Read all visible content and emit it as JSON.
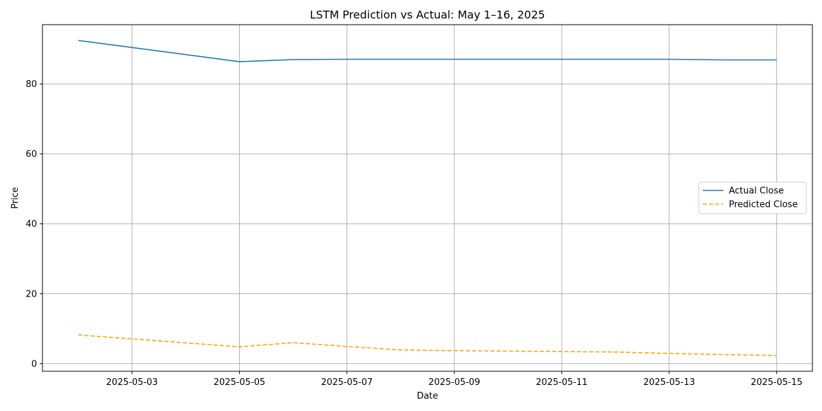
{
  "chart_data": {
    "type": "line",
    "title": "LSTM Prediction vs Actual: May 1–16, 2025",
    "xlabel": "Date",
    "ylabel": "Price",
    "x": [
      "2025-05-02",
      "2025-05-05",
      "2025-05-06",
      "2025-05-07",
      "2025-05-08",
      "2025-05-09",
      "2025-05-12",
      "2025-05-13",
      "2025-05-14",
      "2025-05-15"
    ],
    "series": [
      {
        "name": "Actual Close",
        "color": "#1f77b4",
        "style": "solid",
        "values": [
          92.5,
          86.4,
          87.0,
          87.1,
          87.1,
          87.1,
          87.1,
          87.1,
          86.9,
          86.9
        ]
      },
      {
        "name": "Predicted Close",
        "color": "#ffa500",
        "style": "dashed",
        "values": [
          8.2,
          4.8,
          6.0,
          4.9,
          3.9,
          3.7,
          3.3,
          2.9,
          2.6,
          2.3
        ]
      }
    ],
    "x_ticks": [
      "2025-05-03",
      "2025-05-05",
      "2025-05-07",
      "2025-05-09",
      "2025-05-11",
      "2025-05-13",
      "2025-05-15"
    ],
    "y_ticks": [
      0,
      20,
      40,
      60,
      80
    ],
    "xlim": [
      "2025-05-01 08:00",
      "2025-05-15 16:00"
    ],
    "ylim": [
      -2.2,
      97.0
    ],
    "grid": true,
    "legend_position": "center-right"
  }
}
